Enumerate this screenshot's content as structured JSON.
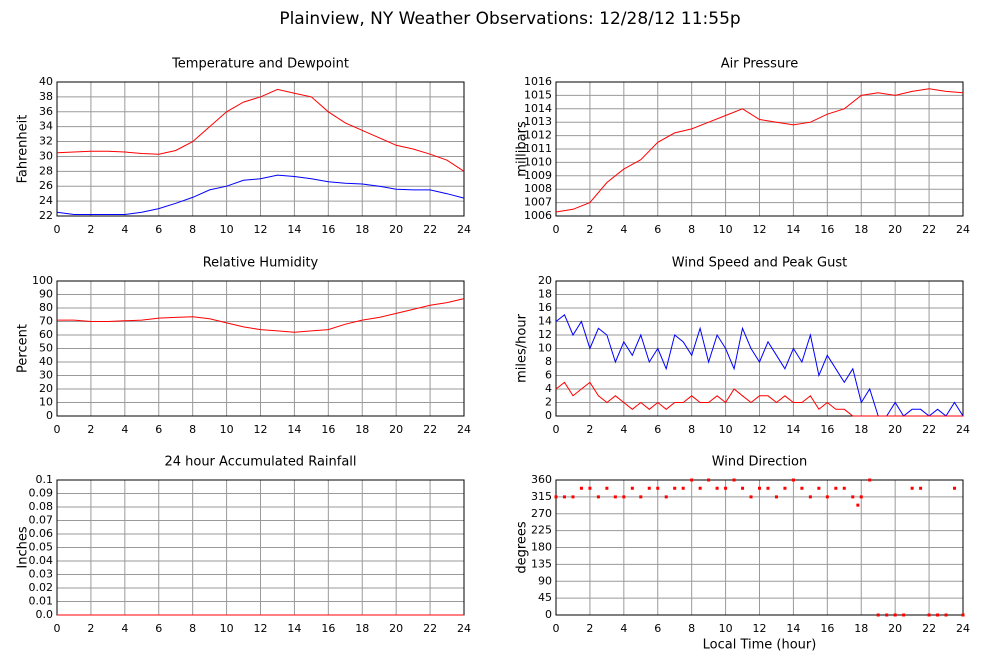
{
  "title": "Plainview, NY Weather Observations: 12/28/12 11:55p",
  "chart_data": [
    {
      "type": "line",
      "title": "Temperature and Dewpoint",
      "ylabel": "Fahrenheit",
      "x": [
        0,
        1,
        2,
        3,
        4,
        5,
        6,
        7,
        8,
        9,
        10,
        11,
        12,
        13,
        14,
        15,
        16,
        17,
        18,
        19,
        20,
        21,
        22,
        23,
        24
      ],
      "series": [
        {
          "color": "#ff0000",
          "values": [
            30.5,
            30.6,
            30.7,
            30.7,
            30.6,
            30.4,
            30.3,
            30.8,
            32,
            34,
            36,
            37.3,
            38,
            39,
            38.5,
            38,
            36,
            34.5,
            33.5,
            32.5,
            31.5,
            31,
            30.3,
            29.5,
            28
          ]
        },
        {
          "color": "#0000ff",
          "values": [
            22.5,
            22.2,
            22.2,
            22.2,
            22.2,
            22.5,
            23,
            23.7,
            24.5,
            25.5,
            26,
            26.8,
            27,
            27.5,
            27.3,
            27,
            26.6,
            26.4,
            26.3,
            26,
            25.6,
            25.5,
            25.5,
            25,
            24.4
          ]
        }
      ],
      "xlim": [
        0,
        24
      ],
      "xticks": [
        0,
        2,
        4,
        6,
        8,
        10,
        12,
        14,
        16,
        18,
        20,
        22,
        24
      ],
      "ylim": [
        22,
        40
      ],
      "yticks": [
        22,
        24,
        26,
        28,
        30,
        32,
        34,
        36,
        38,
        40
      ],
      "grid": true
    },
    {
      "type": "line",
      "title": "Air Pressure",
      "ylabel": "millibars",
      "x": [
        0,
        1,
        2,
        3,
        4,
        5,
        6,
        7,
        8,
        9,
        10,
        11,
        12,
        13,
        14,
        15,
        16,
        17,
        18,
        19,
        20,
        21,
        22,
        23,
        24
      ],
      "series": [
        {
          "color": "#ff0000",
          "values": [
            1006.3,
            1006.5,
            1007,
            1008.5,
            1009.5,
            1010.2,
            1011.5,
            1012.2,
            1012.5,
            1013,
            1013.5,
            1014,
            1013.2,
            1013,
            1012.8,
            1013,
            1013.6,
            1014,
            1015,
            1015.2,
            1015,
            1015.3,
            1015.5,
            1015.3,
            1015.2
          ]
        }
      ],
      "xlim": [
        0,
        24
      ],
      "xticks": [
        0,
        2,
        4,
        6,
        8,
        10,
        12,
        14,
        16,
        18,
        20,
        22,
        24
      ],
      "ylim": [
        1006,
        1016
      ],
      "yticks": [
        1006,
        1007,
        1008,
        1009,
        1010,
        1011,
        1012,
        1013,
        1014,
        1015,
        1016
      ],
      "grid": true
    },
    {
      "type": "line",
      "title": "Relative Humidity",
      "ylabel": "Percent",
      "x": [
        0,
        1,
        2,
        3,
        4,
        5,
        6,
        7,
        8,
        9,
        10,
        11,
        12,
        13,
        14,
        15,
        16,
        17,
        18,
        19,
        20,
        21,
        22,
        23,
        24
      ],
      "series": [
        {
          "color": "#ff0000",
          "values": [
            71,
            71,
            70,
            70,
            70.5,
            71,
            72.5,
            73,
            73.5,
            72,
            69,
            66,
            64,
            63,
            62,
            63,
            64,
            68,
            71,
            73,
            76,
            79,
            82,
            84,
            87
          ]
        }
      ],
      "xlim": [
        0,
        24
      ],
      "xticks": [
        0,
        2,
        4,
        6,
        8,
        10,
        12,
        14,
        16,
        18,
        20,
        22,
        24
      ],
      "ylim": [
        0,
        100
      ],
      "yticks": [
        0,
        10,
        20,
        30,
        40,
        50,
        60,
        70,
        80,
        90,
        100
      ],
      "grid": true
    },
    {
      "type": "line",
      "title": "Wind Speed and Peak Gust",
      "ylabel": "miles/hour",
      "x": [
        0,
        0.5,
        1,
        1.5,
        2,
        2.5,
        3,
        3.5,
        4,
        4.5,
        5,
        5.5,
        6,
        6.5,
        7,
        7.5,
        8,
        8.5,
        9,
        9.5,
        10,
        10.5,
        11,
        11.5,
        12,
        12.5,
        13,
        13.5,
        14,
        14.5,
        15,
        15.5,
        16,
        16.5,
        17,
        17.5,
        18,
        18.5,
        19,
        19.5,
        20,
        20.5,
        21,
        21.5,
        22,
        22.5,
        23,
        23.5,
        24
      ],
      "series": [
        {
          "color": "#0000ff",
          "values": [
            14,
            15,
            12,
            14,
            10,
            13,
            12,
            8,
            11,
            9,
            12,
            8,
            10,
            7,
            12,
            11,
            9,
            13,
            8,
            12,
            10,
            7,
            13,
            10,
            8,
            11,
            9,
            7,
            10,
            8,
            12,
            6,
            9,
            7,
            5,
            7,
            2,
            4,
            0,
            0,
            2,
            0,
            1,
            1,
            0,
            1,
            0,
            2,
            0
          ]
        },
        {
          "color": "#ff0000",
          "values": [
            4,
            5,
            3,
            4,
            5,
            3,
            2,
            3,
            2,
            1,
            2,
            1,
            2,
            1,
            2,
            2,
            3,
            2,
            2,
            3,
            2,
            4,
            3,
            2,
            3,
            3,
            2,
            3,
            2,
            2,
            3,
            1,
            2,
            1,
            1,
            0,
            0,
            0,
            0,
            0,
            0,
            0,
            0,
            0,
            0,
            0,
            0,
            0,
            0
          ]
        }
      ],
      "xlim": [
        0,
        24
      ],
      "xticks": [
        0,
        2,
        4,
        6,
        8,
        10,
        12,
        14,
        16,
        18,
        20,
        22,
        24
      ],
      "ylim": [
        0,
        20
      ],
      "yticks": [
        0,
        2,
        4,
        6,
        8,
        10,
        12,
        14,
        16,
        18,
        20
      ],
      "grid": true
    },
    {
      "type": "line",
      "title": "24 hour Accumulated Rainfall",
      "ylabel": "Inches",
      "x": [
        0,
        1,
        2,
        3,
        4,
        5,
        6,
        7,
        8,
        9,
        10,
        11,
        12,
        13,
        14,
        15,
        16,
        17,
        18,
        19,
        20,
        21,
        22,
        23,
        24
      ],
      "series": [
        {
          "color": "#ff0000",
          "values": [
            0,
            0,
            0,
            0,
            0,
            0,
            0,
            0,
            0,
            0,
            0,
            0,
            0,
            0,
            0,
            0,
            0,
            0,
            0,
            0,
            0,
            0,
            0,
            0,
            0
          ]
        }
      ],
      "xlim": [
        0,
        24
      ],
      "xticks": [
        0,
        2,
        4,
        6,
        8,
        10,
        12,
        14,
        16,
        18,
        20,
        22,
        24
      ],
      "ylim": [
        0,
        0.1
      ],
      "yticks": [
        {
          "value": 0,
          "label": "0.0"
        },
        0.01,
        0.02,
        0.03,
        0.04,
        0.05,
        0.06,
        0.07,
        0.08,
        0.09,
        0.1
      ],
      "grid": true
    },
    {
      "type": "scatter",
      "title": "Wind Direction",
      "ylabel": "degrees",
      "xlabel": "Local Time (hour)",
      "x": [
        0,
        0.5,
        1,
        1.5,
        2,
        2.5,
        3,
        3.5,
        4,
        4.5,
        5,
        5.5,
        6,
        6.5,
        7,
        7.5,
        8,
        8.5,
        9,
        9.5,
        10,
        10.5,
        11,
        11.5,
        12,
        12.5,
        13,
        13.5,
        14,
        14.5,
        15,
        15.5,
        16,
        16.5,
        17,
        17.5,
        17.8,
        18,
        18.5,
        19,
        19.5,
        20,
        20.5,
        21,
        21.5,
        22,
        22.5,
        23,
        23.5,
        24
      ],
      "series": [
        {
          "color": "#ff0000",
          "values": [
            315,
            315,
            315,
            338,
            338,
            315,
            338,
            315,
            315,
            338,
            315,
            338,
            338,
            315,
            338,
            338,
            360,
            338,
            360,
            338,
            338,
            360,
            338,
            315,
            338,
            338,
            315,
            338,
            360,
            338,
            315,
            338,
            315,
            338,
            338,
            315,
            293,
            315,
            360,
            0,
            0,
            0,
            0,
            338,
            338,
            0,
            0,
            0,
            338,
            0
          ]
        }
      ],
      "xlim": [
        0,
        24
      ],
      "xticks": [
        0,
        2,
        4,
        6,
        8,
        10,
        12,
        14,
        16,
        18,
        20,
        22,
        24
      ],
      "ylim": [
        0,
        360
      ],
      "yticks": [
        0,
        45,
        90,
        135,
        180,
        225,
        270,
        315,
        360
      ],
      "grid": true
    }
  ]
}
